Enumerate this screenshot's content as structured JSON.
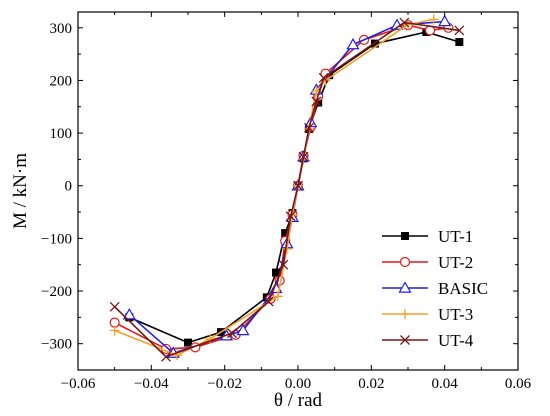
{
  "chart_data": {
    "type": "line",
    "xlabel": "θ / rad",
    "ylabel": "M / kN·m",
    "xlim": [
      -0.06,
      0.06
    ],
    "ylim": [
      -350,
      330
    ],
    "xticks": [
      -0.06,
      -0.04,
      -0.02,
      0.0,
      0.02,
      0.04,
      0.06
    ],
    "xtick_labels": [
      "−0.06",
      "−0.04",
      "−0.02",
      "0.00",
      "0.02",
      "0.04",
      "0.06"
    ],
    "yticks": [
      -300,
      -200,
      -100,
      0,
      100,
      200,
      300
    ],
    "ytick_labels": [
      "−300",
      "−200",
      "−100",
      "0",
      "100",
      "200",
      "300"
    ],
    "grid": false,
    "legend_position": "bottom-right",
    "series": [
      {
        "name": "UT-1",
        "color": "#000000",
        "marker": "square",
        "points": [
          [
            -0.046,
            -250
          ],
          [
            -0.03,
            -298
          ],
          [
            -0.021,
            -278
          ],
          [
            -0.0085,
            -212
          ],
          [
            -0.006,
            -165
          ],
          [
            -0.0035,
            -90
          ],
          [
            -0.0015,
            -52
          ],
          [
            0.0,
            0
          ],
          [
            0.0015,
            52
          ],
          [
            0.003,
            108
          ],
          [
            0.0055,
            158
          ],
          [
            0.0085,
            210
          ],
          [
            0.021,
            270
          ],
          [
            0.035,
            292
          ],
          [
            0.044,
            273
          ]
        ]
      },
      {
        "name": "UT-2",
        "color": "#e01b1b",
        "marker": "circle",
        "points": [
          [
            -0.05,
            -260
          ],
          [
            -0.036,
            -310
          ],
          [
            -0.028,
            -307
          ],
          [
            -0.017,
            -283
          ],
          [
            -0.0075,
            -215
          ],
          [
            -0.005,
            -180
          ],
          [
            -0.0035,
            -105
          ],
          [
            -0.0015,
            -55
          ],
          [
            0.0,
            0
          ],
          [
            0.0015,
            57
          ],
          [
            0.0035,
            112
          ],
          [
            0.0055,
            170
          ],
          [
            0.0075,
            213
          ],
          [
            0.018,
            277
          ],
          [
            0.03,
            305
          ],
          [
            0.036,
            295
          ],
          [
            0.041,
            300
          ]
        ]
      },
      {
        "name": "BASIC",
        "color": "#1f1fe6",
        "marker": "triangle",
        "points": [
          [
            -0.046,
            -245
          ],
          [
            -0.034,
            -318
          ],
          [
            -0.0195,
            -285
          ],
          [
            -0.015,
            -275
          ],
          [
            -0.006,
            -195
          ],
          [
            -0.003,
            -110
          ],
          [
            -0.0015,
            -60
          ],
          [
            0.0,
            0
          ],
          [
            0.0015,
            55
          ],
          [
            0.0035,
            120
          ],
          [
            0.005,
            182
          ],
          [
            0.015,
            268
          ],
          [
            0.027,
            305
          ],
          [
            0.04,
            312
          ]
        ]
      },
      {
        "name": "UT-3",
        "color": "#f5a028",
        "marker": "plus",
        "points": [
          [
            -0.05,
            -275
          ],
          [
            -0.033,
            -322
          ],
          [
            -0.024,
            -291
          ],
          [
            -0.0055,
            -210
          ],
          [
            -0.003,
            -120
          ],
          [
            -0.0015,
            -55
          ],
          [
            0.0,
            0
          ],
          [
            0.0015,
            50
          ],
          [
            0.003,
            108
          ],
          [
            0.005,
            180
          ],
          [
            0.0075,
            200
          ],
          [
            0.03,
            306
          ],
          [
            0.037,
            316
          ]
        ]
      },
      {
        "name": "UT-4",
        "color": "#7a1616",
        "marker": "x",
        "points": [
          [
            -0.05,
            -230
          ],
          [
            -0.036,
            -325
          ],
          [
            -0.018,
            -280
          ],
          [
            -0.008,
            -220
          ],
          [
            -0.004,
            -150
          ],
          [
            -0.002,
            -58
          ],
          [
            0.0,
            0
          ],
          [
            0.0015,
            55
          ],
          [
            0.003,
            110
          ],
          [
            0.005,
            160
          ],
          [
            0.007,
            205
          ],
          [
            0.029,
            310
          ],
          [
            0.044,
            295
          ]
        ]
      }
    ]
  }
}
